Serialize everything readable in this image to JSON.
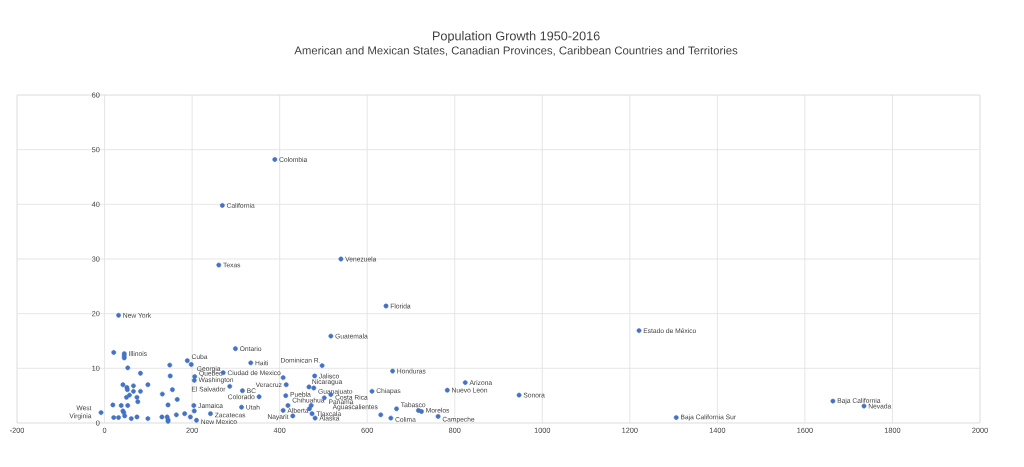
{
  "chart_data": {
    "type": "scatter",
    "title": "Population Growth 1950-2016",
    "subtitle": "American and Mexican States, Canadian Provinces, Caribbean Countries and Territories",
    "xlim": [
      -200,
      2000
    ],
    "xticks": [
      -200,
      0,
      200,
      400,
      600,
      800,
      1000,
      1200,
      1400,
      1600,
      1800,
      2000
    ],
    "ylim": [
      0,
      60
    ],
    "yticks": [
      0,
      10,
      20,
      30,
      40,
      50,
      60
    ],
    "grid": true,
    "marker": "circle",
    "series": [
      {
        "color": "#4472c4",
        "x": [
          389,
          269,
          261,
          540,
          643,
          32,
          517,
          1221,
          45,
          299,
          189,
          334,
          198,
          206,
          271,
          205,
          415,
          286,
          315,
          353,
          204,
          242,
          313,
          210,
          430,
          -8,
          497,
          658,
          480,
          467,
          478,
          517,
          502,
          414,
          419,
          408,
          474,
          481,
          631,
          654,
          667,
          724,
          762,
          611,
          783,
          824,
          947,
          1306,
          1664,
          1735,
          21,
          45,
          45,
          53,
          82,
          42,
          51,
          66,
          99,
          66,
          82,
          52,
          57,
          50,
          74,
          76,
          19,
          38,
          53,
          42,
          44,
          21,
          32,
          46,
          61,
          74,
          99,
          131,
          143,
          145,
          145,
          149,
          150,
          155,
          132,
          145,
          166,
          164,
          183,
          196,
          408,
          472,
          468,
          717,
          205
        ],
        "values": [
          48.2,
          39.8,
          28.9,
          30.0,
          21.4,
          19.7,
          15.9,
          16.9,
          12.7,
          13.6,
          11.4,
          11.0,
          10.7,
          8.5,
          9.2,
          7.8,
          7.0,
          6.7,
          5.9,
          4.8,
          3.2,
          1.7,
          2.9,
          0.5,
          1.3,
          1.9,
          10.5,
          9.5,
          8.6,
          6.6,
          6.4,
          5.2,
          4.6,
          5.0,
          3.2,
          2.3,
          1.7,
          0.9,
          1.5,
          0.9,
          2.6,
          2.1,
          1.2,
          5.8,
          6.0,
          7.4,
          5.1,
          1.0,
          4.0,
          3.1,
          12.9,
          12.3,
          11.9,
          10.1,
          9.1,
          7.0,
          6.5,
          6.8,
          7.0,
          5.8,
          5.8,
          6.1,
          5.1,
          4.7,
          4.7,
          3.9,
          3.3,
          3.2,
          3.2,
          2.2,
          1.9,
          1.0,
          1.0,
          1.3,
          0.8,
          1.1,
          0.8,
          1.1,
          1.1,
          0.6,
          0.3,
          10.6,
          8.6,
          6.1,
          5.3,
          3.3,
          4.3,
          1.5,
          1.7,
          1.1,
          8.3,
          3.2,
          2.6,
          2.3,
          2.2
        ]
      }
    ],
    "annotations": [
      {
        "text": "Colombia",
        "x": 389,
        "y": 48.2
      },
      {
        "text": "California",
        "x": 269,
        "y": 39.8
      },
      {
        "text": "Texas",
        "x": 261,
        "y": 28.9
      },
      {
        "text": "Venezuela",
        "x": 540,
        "y": 30.0
      },
      {
        "text": "Florida",
        "x": 643,
        "y": 21.4
      },
      {
        "text": "New York",
        "x": 32,
        "y": 19.7
      },
      {
        "text": "Guatemala",
        "x": 517,
        "y": 15.9
      },
      {
        "text": "Estado de México",
        "x": 1221,
        "y": 16.9
      },
      {
        "text": "Illinois",
        "x": 45,
        "y": 12.7
      },
      {
        "text": "Ontario",
        "x": 299,
        "y": 13.6
      },
      {
        "text": "Cuba",
        "x": 189,
        "y": 11.4
      },
      {
        "text": "Haiti",
        "x": 334,
        "y": 11.0
      },
      {
        "text": "Georgia",
        "x": 198,
        "y": 10.7
      },
      {
        "text": "Quebec",
        "x": 206,
        "y": 8.5
      },
      {
        "text": "Ciudad de Mexico",
        "x": 271,
        "y": 9.2
      },
      {
        "text": "Washington",
        "x": 205,
        "y": 7.8
      },
      {
        "text": "Veracruz",
        "x": 415,
        "y": 7.0
      },
      {
        "text": "El Salvador",
        "x": 286,
        "y": 6.7
      },
      {
        "text": "BC",
        "x": 315,
        "y": 5.9
      },
      {
        "text": "Colorado",
        "x": 353,
        "y": 4.8
      },
      {
        "text": "Jamaica",
        "x": 204,
        "y": 3.2
      },
      {
        "text": "Zacatecas",
        "x": 242,
        "y": 1.7
      },
      {
        "text": "Utah",
        "x": 313,
        "y": 2.9
      },
      {
        "text": "New Mexico",
        "x": 210,
        "y": 0.5
      },
      {
        "text": "Nayarit",
        "x": 430,
        "y": 1.3
      },
      {
        "text": "West Virginia",
        "x": -8,
        "y": 1.9
      },
      {
        "text": "Dominican R.",
        "x": 497,
        "y": 10.5
      },
      {
        "text": "Honduras",
        "x": 658,
        "y": 9.5
      },
      {
        "text": "Jalisco",
        "x": 480,
        "y": 8.6
      },
      {
        "text": "Nicaragua",
        "x": 467,
        "y": 6.6
      },
      {
        "text": "Guanajuato",
        "x": 478,
        "y": 6.4
      },
      {
        "text": "Costa Rica",
        "x": 517,
        "y": 5.2
      },
      {
        "text": "Panama",
        "x": 502,
        "y": 4.6
      },
      {
        "text": "Puebla",
        "x": 414,
        "y": 5.0
      },
      {
        "text": "Chihuahua",
        "x": 419,
        "y": 3.2
      },
      {
        "text": "Alberta",
        "x": 408,
        "y": 2.3
      },
      {
        "text": "Tlaxcala",
        "x": 474,
        "y": 1.7
      },
      {
        "text": "Alaska",
        "x": 481,
        "y": 0.9
      },
      {
        "text": "Aguascalientes",
        "x": 631,
        "y": 1.5
      },
      {
        "text": "Colima",
        "x": 654,
        "y": 0.9
      },
      {
        "text": "Tabasco",
        "x": 667,
        "y": 2.6
      },
      {
        "text": "Morelos",
        "x": 724,
        "y": 2.1
      },
      {
        "text": "Campeche",
        "x": 762,
        "y": 1.2
      },
      {
        "text": "Chiapas",
        "x": 611,
        "y": 5.8
      },
      {
        "text": "Nuevo Leon",
        "x": 783,
        "y": 6.0
      },
      {
        "text": "Arizona",
        "x": 824,
        "y": 7.4
      },
      {
        "text": "Sonora",
        "x": 947,
        "y": 5.1
      },
      {
        "text": "Baja California Sur",
        "x": 1306,
        "y": 1.0
      },
      {
        "text": "Baja California",
        "x": 1664,
        "y": 4.0
      },
      {
        "text": "Nevada",
        "x": 1735,
        "y": 3.1
      }
    ]
  }
}
